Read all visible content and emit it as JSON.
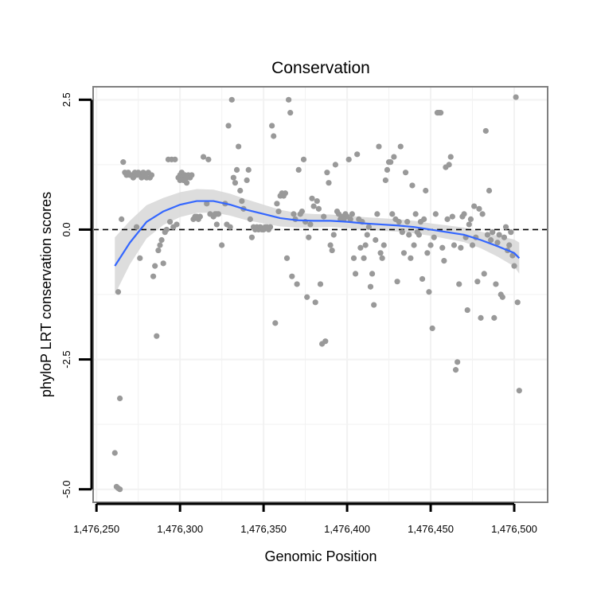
{
  "chart_data": {
    "type": "scatter",
    "title": "Conservation",
    "xlabel": "Genomic Position",
    "ylabel": "phyloP LRT conservation scores",
    "xlim": [
      1476248,
      1476520
    ],
    "ylim": [
      -5.25,
      2.75
    ],
    "x_ticks": [
      1476250,
      1476300,
      1476350,
      1476400,
      1476450,
      1476500
    ],
    "x_tick_labels": [
      "1,476,250",
      "1,476,300",
      "1,476,350",
      "1,476,400",
      "1,476,450",
      "1,476,500"
    ],
    "y_ticks": [
      2.5,
      0,
      -2.5,
      -5
    ],
    "y_tick_labels": [
      "2.5",
      "0.0",
      "-2.5",
      "-5.0"
    ],
    "reference_line": {
      "y": 0,
      "style": "dashed"
    },
    "colors": {
      "points": "#999999",
      "smooth": "#3366ff",
      "band": "#d9d9d9",
      "grid": "#f2f2f2",
      "border": "#7f7f7f"
    },
    "points": [
      [
        1476261,
        -4.3
      ],
      [
        1476262,
        -4.95
      ],
      [
        1476263,
        -4.98
      ],
      [
        1476264,
        -5.0
      ],
      [
        1476264,
        -3.25
      ],
      [
        1476263,
        -1.2
      ],
      [
        1476265,
        0.2
      ],
      [
        1476266,
        1.3
      ],
      [
        1476267,
        1.1
      ],
      [
        1476268,
        1.05
      ],
      [
        1476269,
        1.1
      ],
      [
        1476270,
        1.05
      ],
      [
        1476271,
        1.05
      ],
      [
        1476272,
        1.0
      ],
      [
        1476273,
        1.1
      ],
      [
        1476274,
        1.05
      ],
      [
        1476275,
        1.1
      ],
      [
        1476276,
        1.05
      ],
      [
        1476277,
        1.0
      ],
      [
        1476278,
        1.1
      ],
      [
        1476279,
        1.05
      ],
      [
        1476280,
        1.0
      ],
      [
        1476281,
        1.1
      ],
      [
        1476282,
        1.0
      ],
      [
        1476283,
        1.05
      ],
      [
        1476274,
        0.05
      ],
      [
        1476276,
        -0.55
      ],
      [
        1476284,
        -0.9
      ],
      [
        1476285,
        -0.7
      ],
      [
        1476286,
        -2.05
      ],
      [
        1476287,
        -0.4
      ],
      [
        1476288,
        -0.3
      ],
      [
        1476289,
        -0.2
      ],
      [
        1476290,
        -0.65
      ],
      [
        1476291,
        -0.05
      ],
      [
        1476292,
        0.0
      ],
      [
        1476293,
        1.35
      ],
      [
        1476295,
        1.35
      ],
      [
        1476297,
        1.35
      ],
      [
        1476294,
        0.15
      ],
      [
        1476296,
        0.05
      ],
      [
        1476298,
        0.1
      ],
      [
        1476299,
        1.0
      ],
      [
        1476300,
        1.05
      ],
      [
        1476301,
        1.1
      ],
      [
        1476302,
        1.0
      ],
      [
        1476303,
        1.05
      ],
      [
        1476304,
        1.0
      ],
      [
        1476305,
        1.05
      ],
      [
        1476306,
        1.0
      ],
      [
        1476307,
        1.05
      ],
      [
        1476300,
        0.95
      ],
      [
        1476302,
        0.95
      ],
      [
        1476304,
        0.9
      ],
      [
        1476308,
        0.2
      ],
      [
        1476309,
        0.25
      ],
      [
        1476310,
        0.25
      ],
      [
        1476311,
        0.2
      ],
      [
        1476312,
        0.25
      ],
      [
        1476314,
        1.4
      ],
      [
        1476316,
        0.5
      ],
      [
        1476317,
        1.35
      ],
      [
        1476318,
        0.3
      ],
      [
        1476320,
        0.25
      ],
      [
        1476321,
        0.3
      ],
      [
        1476322,
        0.3
      ],
      [
        1476323,
        0.3
      ],
      [
        1476322,
        0.1
      ],
      [
        1476325,
        -0.3
      ],
      [
        1476327,
        0.5
      ],
      [
        1476328,
        0.1
      ],
      [
        1476329,
        2.0
      ],
      [
        1476330,
        0.05
      ],
      [
        1476331,
        2.5
      ],
      [
        1476332,
        1.0
      ],
      [
        1476333,
        0.9
      ],
      [
        1476334,
        1.15
      ],
      [
        1476335,
        1.6
      ],
      [
        1476336,
        0.75
      ],
      [
        1476337,
        0.55
      ],
      [
        1476338,
        0.4
      ],
      [
        1476340,
        0.95
      ],
      [
        1476341,
        1.15
      ],
      [
        1476342,
        0.2
      ],
      [
        1476343,
        -0.15
      ],
      [
        1476344,
        0.05
      ],
      [
        1476345,
        0.0
      ],
      [
        1476346,
        0.05
      ],
      [
        1476347,
        0.0
      ],
      [
        1476348,
        0.05
      ],
      [
        1476349,
        0.0
      ],
      [
        1476350,
        0.0
      ],
      [
        1476351,
        0.05
      ],
      [
        1476352,
        0.05
      ],
      [
        1476353,
        0.0
      ],
      [
        1476354,
        0.05
      ],
      [
        1476355,
        2.0
      ],
      [
        1476356,
        1.8
      ],
      [
        1476357,
        -1.8
      ],
      [
        1476358,
        0.5
      ],
      [
        1476359,
        0.35
      ],
      [
        1476360,
        0.65
      ],
      [
        1476361,
        0.7
      ],
      [
        1476362,
        0.65
      ],
      [
        1476363,
        0.7
      ],
      [
        1476364,
        -0.55
      ],
      [
        1476365,
        2.5
      ],
      [
        1476366,
        2.25
      ],
      [
        1476367,
        -0.9
      ],
      [
        1476368,
        0.3
      ],
      [
        1476369,
        0.2
      ],
      [
        1476370,
        -1.05
      ],
      [
        1476371,
        1.15
      ],
      [
        1476372,
        0.3
      ],
      [
        1476373,
        0.35
      ],
      [
        1476374,
        1.35
      ],
      [
        1476375,
        0.15
      ],
      [
        1476376,
        -1.3
      ],
      [
        1476377,
        -0.15
      ],
      [
        1476378,
        0.1
      ],
      [
        1476379,
        0.6
      ],
      [
        1476380,
        0.45
      ],
      [
        1476381,
        -1.4
      ],
      [
        1476382,
        0.55
      ],
      [
        1476383,
        0.4
      ],
      [
        1476384,
        -1.05
      ],
      [
        1476385,
        -2.2
      ],
      [
        1476386,
        0.25
      ],
      [
        1476387,
        -2.15
      ],
      [
        1476388,
        1.1
      ],
      [
        1476389,
        0.9
      ],
      [
        1476390,
        -0.3
      ],
      [
        1476391,
        -0.4
      ],
      [
        1476392,
        -0.1
      ],
      [
        1476393,
        1.25
      ],
      [
        1476394,
        0.35
      ],
      [
        1476395,
        0.3
      ],
      [
        1476396,
        0.2
      ],
      [
        1476397,
        0.25
      ],
      [
        1476398,
        0.2
      ],
      [
        1476399,
        0.3
      ],
      [
        1476400,
        0.25
      ],
      [
        1476401,
        1.35
      ],
      [
        1476402,
        0.2
      ],
      [
        1476403,
        0.3
      ],
      [
        1476404,
        -0.55
      ],
      [
        1476405,
        -0.85
      ],
      [
        1476406,
        1.45
      ],
      [
        1476407,
        0.2
      ],
      [
        1476408,
        -0.35
      ],
      [
        1476409,
        0.15
      ],
      [
        1476410,
        -0.55
      ],
      [
        1476411,
        -0.3
      ],
      [
        1476412,
        -0.1
      ],
      [
        1476413,
        0.05
      ],
      [
        1476414,
        -1.1
      ],
      [
        1476415,
        -0.85
      ],
      [
        1476416,
        -1.45
      ],
      [
        1476417,
        -0.2
      ],
      [
        1476418,
        0.3
      ],
      [
        1476419,
        1.6
      ],
      [
        1476420,
        -0.45
      ],
      [
        1476421,
        -0.55
      ],
      [
        1476422,
        -0.3
      ],
      [
        1476423,
        0.95
      ],
      [
        1476424,
        1.15
      ],
      [
        1476425,
        1.3
      ],
      [
        1476426,
        1.3
      ],
      [
        1476427,
        0.3
      ],
      [
        1476428,
        1.4
      ],
      [
        1476429,
        0.2
      ],
      [
        1476430,
        -1.0
      ],
      [
        1476431,
        0.15
      ],
      [
        1476432,
        1.6
      ],
      [
        1476433,
        -0.05
      ],
      [
        1476434,
        -0.45
      ],
      [
        1476435,
        1.1
      ],
      [
        1476436,
        0.15
      ],
      [
        1476437,
        -0.1
      ],
      [
        1476438,
        -0.55
      ],
      [
        1476439,
        0.85
      ],
      [
        1476440,
        -0.3
      ],
      [
        1476441,
        0.3
      ],
      [
        1476442,
        -0.05
      ],
      [
        1476443,
        -0.1
      ],
      [
        1476444,
        0.15
      ],
      [
        1476445,
        -0.95
      ],
      [
        1476446,
        0.2
      ],
      [
        1476447,
        0.75
      ],
      [
        1476448,
        -0.45
      ],
      [
        1476449,
        -1.2
      ],
      [
        1476450,
        -0.3
      ],
      [
        1476451,
        -1.9
      ],
      [
        1476452,
        -0.15
      ],
      [
        1476453,
        0.3
      ],
      [
        1476454,
        2.25
      ],
      [
        1476455,
        2.25
      ],
      [
        1476456,
        2.25
      ],
      [
        1476457,
        -0.35
      ],
      [
        1476458,
        -0.6
      ],
      [
        1476459,
        1.2
      ],
      [
        1476460,
        0.2
      ],
      [
        1476461,
        1.25
      ],
      [
        1476462,
        1.4
      ],
      [
        1476463,
        0.25
      ],
      [
        1476464,
        -0.3
      ],
      [
        1476465,
        -2.7
      ],
      [
        1476466,
        -2.55
      ],
      [
        1476467,
        -1.05
      ],
      [
        1476468,
        -0.35
      ],
      [
        1476469,
        0.25
      ],
      [
        1476470,
        0.3
      ],
      [
        1476471,
        -0.15
      ],
      [
        1476472,
        -1.55
      ],
      [
        1476473,
        0.1
      ],
      [
        1476474,
        0.2
      ],
      [
        1476475,
        -0.3
      ],
      [
        1476476,
        0.45
      ],
      [
        1476477,
        -0.15
      ],
      [
        1476478,
        -1.0
      ],
      [
        1476479,
        0.4
      ],
      [
        1476480,
        -1.7
      ],
      [
        1476481,
        0.3
      ],
      [
        1476482,
        -0.85
      ],
      [
        1476483,
        1.9
      ],
      [
        1476484,
        -0.1
      ],
      [
        1476485,
        0.75
      ],
      [
        1476486,
        -0.2
      ],
      [
        1476487,
        -0.05
      ],
      [
        1476488,
        -1.7
      ],
      [
        1476489,
        -1.05
      ],
      [
        1476490,
        -0.25
      ],
      [
        1476491,
        -0.1
      ],
      [
        1476492,
        -1.25
      ],
      [
        1476493,
        -1.3
      ],
      [
        1476494,
        -0.15
      ],
      [
        1476495,
        0.05
      ],
      [
        1476496,
        -0.4
      ],
      [
        1476497,
        -0.3
      ],
      [
        1476498,
        -0.05
      ],
      [
        1476499,
        -0.5
      ],
      [
        1476500,
        -0.7
      ],
      [
        1476501,
        2.55
      ],
      [
        1476502,
        -1.4
      ],
      [
        1476503,
        -3.1
      ]
    ],
    "smooth": [
      [
        1476261,
        -0.7
      ],
      [
        1476270,
        -0.25
      ],
      [
        1476280,
        0.15
      ],
      [
        1476290,
        0.35
      ],
      [
        1476300,
        0.48
      ],
      [
        1476310,
        0.55
      ],
      [
        1476320,
        0.55
      ],
      [
        1476330,
        0.48
      ],
      [
        1476340,
        0.38
      ],
      [
        1476350,
        0.3
      ],
      [
        1476360,
        0.22
      ],
      [
        1476370,
        0.18
      ],
      [
        1476380,
        0.17
      ],
      [
        1476390,
        0.17
      ],
      [
        1476400,
        0.15
      ],
      [
        1476410,
        0.12
      ],
      [
        1476420,
        0.1
      ],
      [
        1476430,
        0.08
      ],
      [
        1476440,
        0.05
      ],
      [
        1476450,
        0.0
      ],
      [
        1476460,
        -0.05
      ],
      [
        1476470,
        -0.1
      ],
      [
        1476480,
        -0.2
      ],
      [
        1476490,
        -0.32
      ],
      [
        1476500,
        -0.45
      ],
      [
        1476503,
        -0.55
      ]
    ],
    "band_halfwidth": [
      0.55,
      0.42,
      0.32,
      0.26,
      0.24,
      0.23,
      0.22,
      0.21,
      0.2,
      0.18,
      0.16,
      0.14,
      0.13,
      0.12,
      0.12,
      0.12,
      0.12,
      0.12,
      0.12,
      0.12,
      0.13,
      0.14,
      0.16,
      0.2,
      0.26,
      0.3
    ]
  }
}
